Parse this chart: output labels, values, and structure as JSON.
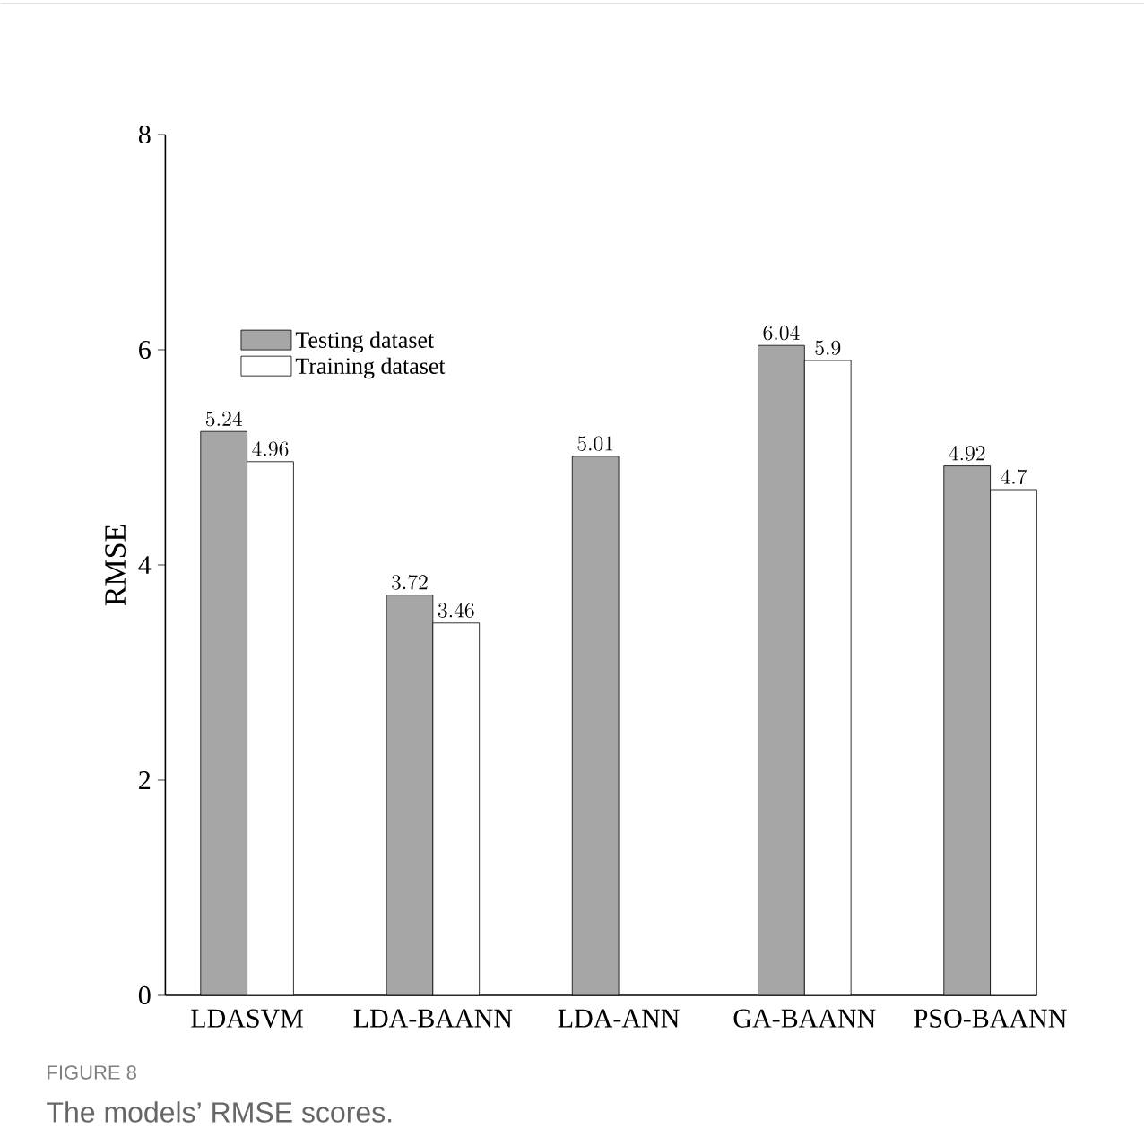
{
  "chart_data": {
    "type": "bar",
    "ylabel": "RMSE",
    "categories": [
      "LDASVM",
      "LDA-BAANN",
      "LDA-ANN",
      "GA-BAANN",
      "PSO-BAANN"
    ],
    "series": [
      {
        "name": "Testing dataset",
        "color": "#a6a6a6",
        "values": [
          5.24,
          3.72,
          5.01,
          6.04,
          4.92
        ]
      },
      {
        "name": "Training dataset",
        "color": "#ffffff",
        "values": [
          4.96,
          3.46,
          null,
          5.9,
          4.7
        ]
      }
    ],
    "ylim": [
      0,
      8
    ],
    "yticks": [
      0,
      2,
      4,
      6,
      8
    ],
    "data_labels": true,
    "legend": "left",
    "grid": false,
    "annotations": [
      "FIGURE 8",
      "The models’ RMSE scores."
    ]
  }
}
